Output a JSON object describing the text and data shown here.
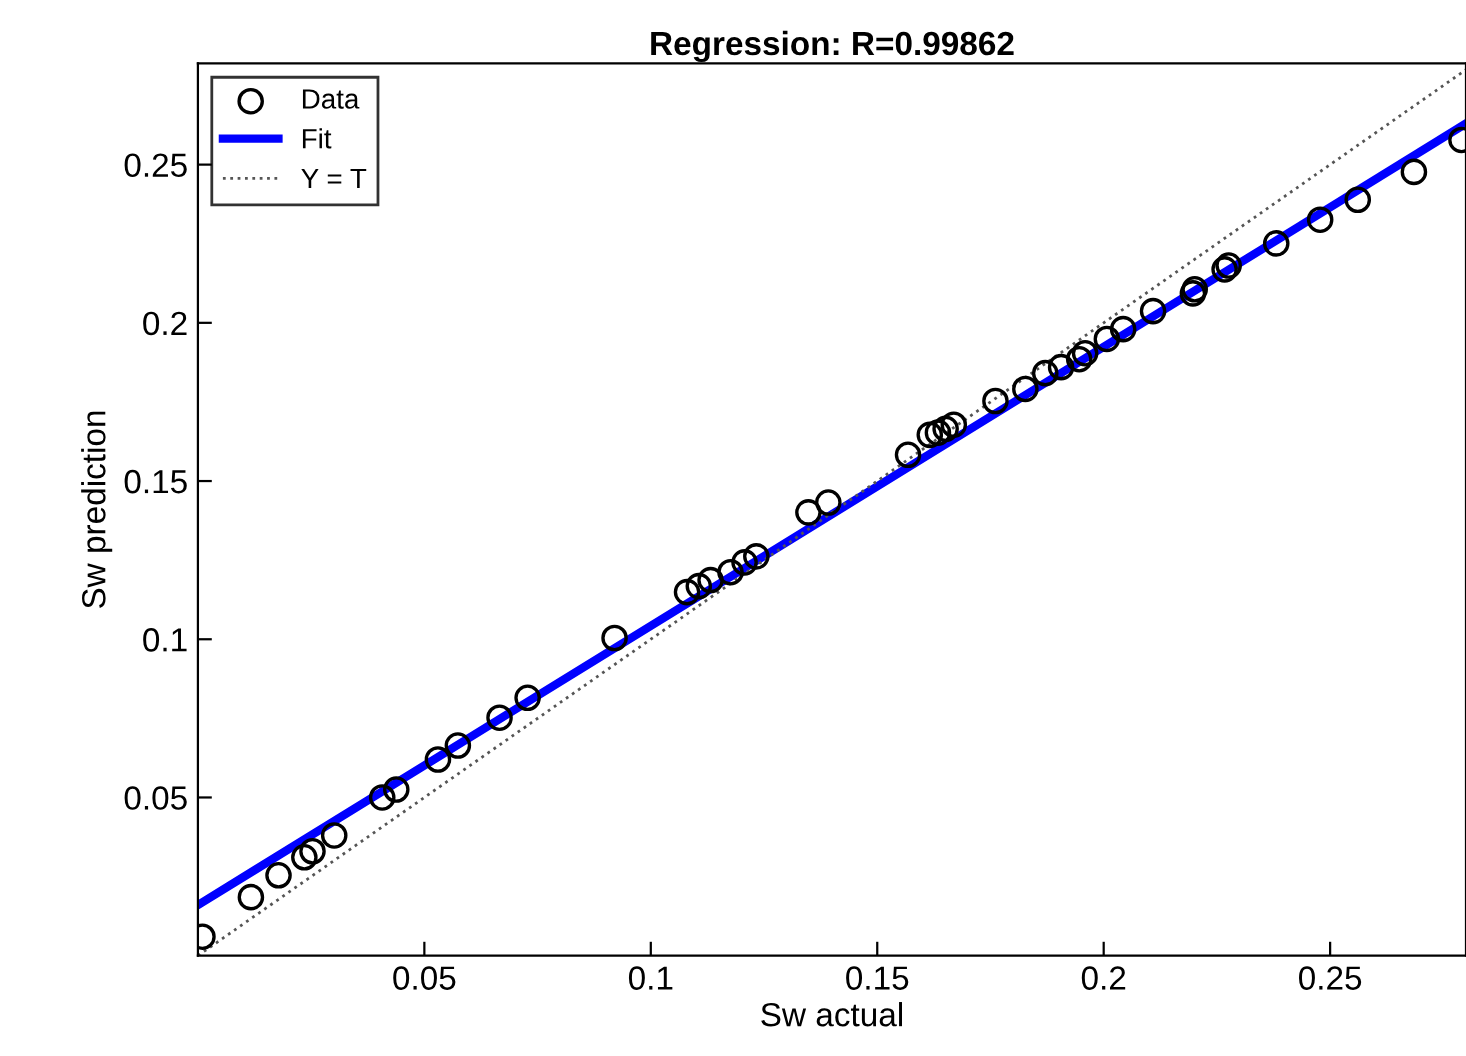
{
  "chart_data": {
    "type": "scatter",
    "title": "Regression: R=0.99862",
    "xlabel": "Sw actual",
    "ylabel": "Sw prediction",
    "xlim": [
      0,
      0.28
    ],
    "ylim": [
      0,
      0.282
    ],
    "xticks": [
      0.05,
      0.1,
      0.15,
      0.2,
      0.25
    ],
    "yticks": [
      0.05,
      0.1,
      0.15,
      0.2,
      0.25
    ],
    "grid": false,
    "legend": "top left",
    "series": [
      {
        "name": "Data",
        "marker": "circle",
        "color": "#000000",
        "x": [
          0.001,
          0.0117,
          0.0178,
          0.0235,
          0.0253,
          0.0301,
          0.0407,
          0.0438,
          0.053,
          0.0574,
          0.0666,
          0.0728,
          0.092,
          0.108,
          0.1106,
          0.1132,
          0.1176,
          0.1207,
          0.1233,
          0.1348,
          0.1392,
          0.1568,
          0.1616,
          0.1634,
          0.1651,
          0.1669,
          0.1761,
          0.1827,
          0.1871,
          0.1906,
          0.1946,
          0.1959,
          0.2007,
          0.2043,
          0.2109,
          0.2197,
          0.2201,
          0.2267,
          0.2276,
          0.2381,
          0.2478,
          0.2561,
          0.2685,
          0.279
        ],
        "values": [
          0.006,
          0.0185,
          0.0254,
          0.0311,
          0.033,
          0.038,
          0.05,
          0.0525,
          0.062,
          0.0664,
          0.0752,
          0.0815,
          0.1004,
          0.1149,
          0.1168,
          0.1187,
          0.1212,
          0.1243,
          0.1262,
          0.1401,
          0.1432,
          0.1583,
          0.1646,
          0.1653,
          0.1665,
          0.1678,
          0.1753,
          0.1791,
          0.1841,
          0.186,
          0.1885,
          0.1904,
          0.1949,
          0.198,
          0.2037,
          0.2093,
          0.2106,
          0.2169,
          0.2181,
          0.2251,
          0.2326,
          0.2389,
          0.2477,
          0.2578
        ]
      },
      {
        "name": "Fit",
        "type": "line",
        "color": "#0000ff",
        "line_style": "solid",
        "x": [
          0,
          0.28
        ],
        "values": [
          0.016,
          0.263
        ]
      },
      {
        "name": "Y = T",
        "type": "line",
        "color": "#555555",
        "line_style": "dotted",
        "x": [
          0,
          0.28
        ],
        "values": [
          0,
          0.28
        ]
      }
    ]
  }
}
